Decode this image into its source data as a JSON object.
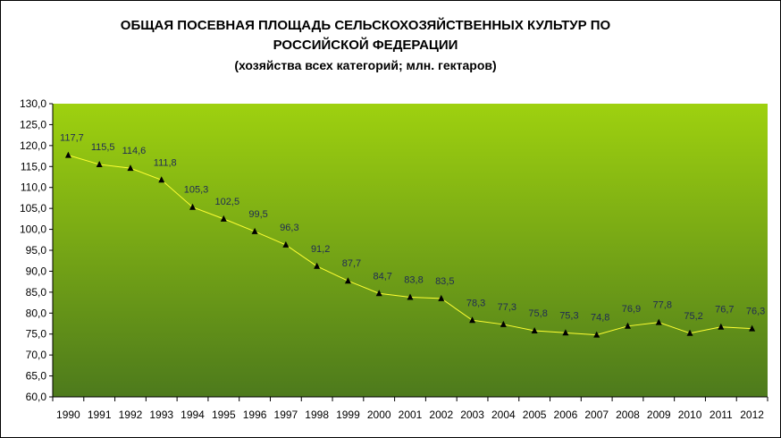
{
  "chart_data": {
    "type": "line",
    "title": "ОБЩАЯ ПОСЕВНАЯ ПЛОЩАДЬ СЕЛЬСКОХОЗЯЙСТВЕННЫХ КУЛЬТУР ПО",
    "title_line2": "РОССИЙСКОЙ ФЕДЕРАЦИИ",
    "subtitle": "(хозяйства всех категорий; млн. гектаров)",
    "xlabel": "",
    "ylabel": "",
    "categories": [
      "1990",
      "1991",
      "1992",
      "1993",
      "1994",
      "1995",
      "1996",
      "1997",
      "1998",
      "1999",
      "2000",
      "2001",
      "2002",
      "2003",
      "2004",
      "2005",
      "2006",
      "2007",
      "2008",
      "2009",
      "2010",
      "2011",
      "2012"
    ],
    "series": [
      {
        "values": [
          117.7,
          115.5,
          114.6,
          111.8,
          105.3,
          102.5,
          99.5,
          96.3,
          91.2,
          87.7,
          84.7,
          83.8,
          83.5,
          78.3,
          77.3,
          75.8,
          75.3,
          74.8,
          76.9,
          77.8,
          75.2,
          76.7,
          76.3
        ],
        "labels": [
          "117,7",
          "115,5",
          "114,6",
          "111,8",
          "105,3",
          "102,5",
          "99,5",
          "96,3",
          "91,2",
          "87,7",
          "84,7",
          "83,8",
          "83,5",
          "78,3",
          "77,3",
          "75,8",
          "75,3",
          "74,8",
          "76,9",
          "77,8",
          "75,2",
          "76,7",
          "76,3"
        ]
      }
    ],
    "y_ticks": [
      "130,0",
      "125,0",
      "120,0",
      "115,0",
      "110,0",
      "105,0",
      "100,0",
      "95,0",
      "90,0",
      "85,0",
      "80,0",
      "75,0",
      "70,0",
      "65,0",
      "60,0"
    ],
    "ylim": [
      60,
      130
    ],
    "grid": false,
    "legend": false,
    "colors": {
      "plot_top": "#9ed10f",
      "plot_bottom": "#4d7a1c",
      "line": "#ffff33",
      "marker": "#000000",
      "label": "#1f2a55"
    }
  }
}
